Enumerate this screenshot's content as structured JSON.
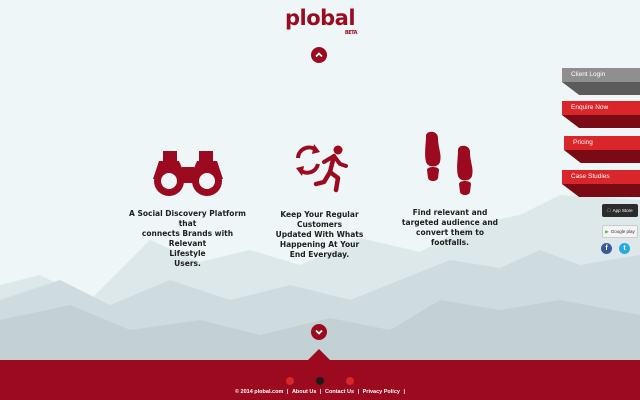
{
  "logo": {
    "text": "plobal",
    "beta": "BETA"
  },
  "features": [
    {
      "icon": "binoculars-icon",
      "text_lines": [
        "A Social Discovery Platform that",
        "connects Brands with Relevant",
        "Lifestyle",
        "Users."
      ]
    },
    {
      "icon": "running-man-icon",
      "text_lines": [
        "Keep Your Regular Customers",
        "Updated With Whats",
        "Happening At Your",
        "End Everyday."
      ]
    },
    {
      "icon": "footprints-icon",
      "text_lines": [
        "Find relevant and",
        "targeted audience and",
        "convert them to",
        "footfalls."
      ]
    }
  ],
  "side_menu": [
    {
      "label": "Client Login"
    },
    {
      "label": "Enquire Now"
    },
    {
      "label": "Pricing"
    },
    {
      "label": "Case Studies"
    }
  ],
  "stores": {
    "appstore": "App Store",
    "gplay": "Google play"
  },
  "social": {
    "facebook": "f",
    "twitter": "t"
  },
  "pager": {
    "count": 3,
    "active_index": 1
  },
  "footer": {
    "copyright": "© 2014 plobal.com",
    "links": [
      "About Us",
      "Contact Us",
      "Privacy Policy"
    ]
  },
  "colors": {
    "brand": "#9b0a1f",
    "accent": "#d9262a",
    "background": "#eef6f7"
  }
}
